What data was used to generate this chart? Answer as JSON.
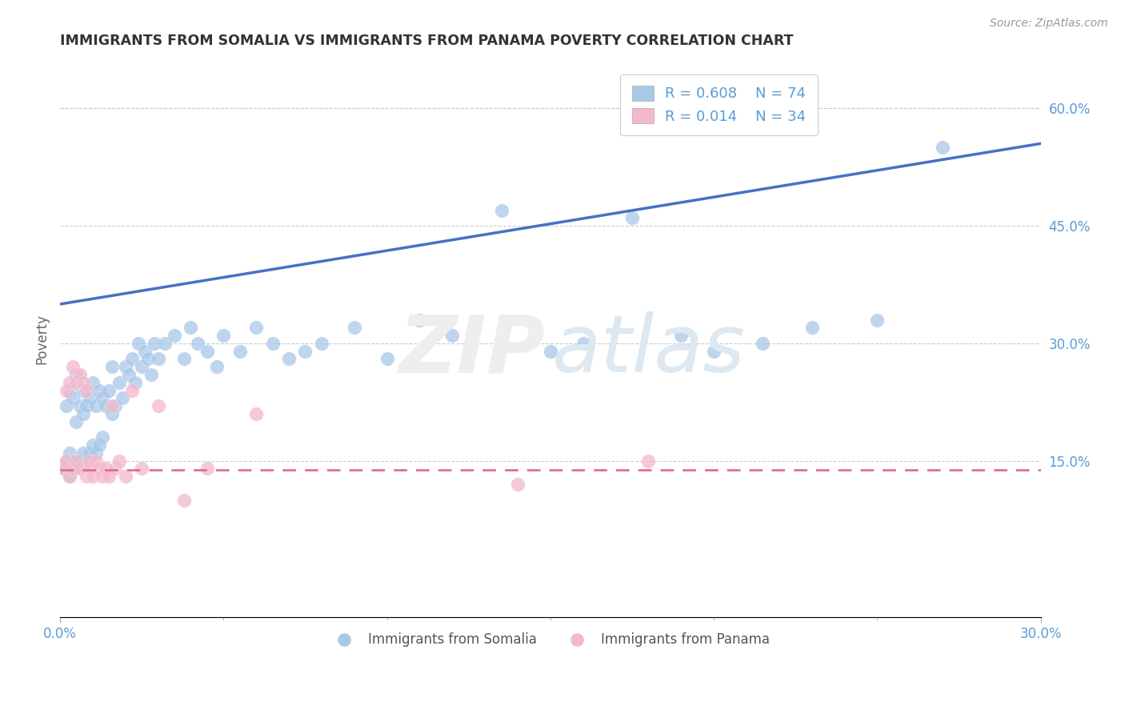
{
  "title": "IMMIGRANTS FROM SOMALIA VS IMMIGRANTS FROM PANAMA POVERTY CORRELATION CHART",
  "source": "Source: ZipAtlas.com",
  "ylabel": "Poverty",
  "right_yticks": [
    0.15,
    0.3,
    0.45,
    0.6
  ],
  "right_ytick_labels": [
    "15.0%",
    "30.0%",
    "45.0%",
    "60.0%"
  ],
  "xmin": 0.0,
  "xmax": 0.3,
  "ymin": -0.05,
  "ymax": 0.66,
  "somalia_color": "#a8c8e8",
  "panama_color": "#f4b8cc",
  "somalia_line_color": "#4472c4",
  "panama_line_color": "#e07090",
  "somalia_R": 0.608,
  "somalia_N": 74,
  "panama_R": 0.014,
  "panama_N": 34,
  "somalia_x": [
    0.001,
    0.002,
    0.002,
    0.003,
    0.003,
    0.003,
    0.004,
    0.004,
    0.005,
    0.005,
    0.005,
    0.006,
    0.006,
    0.007,
    0.007,
    0.007,
    0.008,
    0.008,
    0.009,
    0.009,
    0.01,
    0.01,
    0.011,
    0.011,
    0.012,
    0.012,
    0.013,
    0.013,
    0.014,
    0.015,
    0.016,
    0.016,
    0.017,
    0.018,
    0.019,
    0.02,
    0.021,
    0.022,
    0.023,
    0.024,
    0.025,
    0.026,
    0.027,
    0.028,
    0.029,
    0.03,
    0.032,
    0.035,
    0.038,
    0.04,
    0.042,
    0.045,
    0.048,
    0.05,
    0.055,
    0.06,
    0.065,
    0.07,
    0.075,
    0.08,
    0.09,
    0.1,
    0.11,
    0.12,
    0.135,
    0.15,
    0.16,
    0.175,
    0.19,
    0.2,
    0.215,
    0.23,
    0.25,
    0.27
  ],
  "somalia_y": [
    0.14,
    0.15,
    0.22,
    0.13,
    0.16,
    0.24,
    0.15,
    0.23,
    0.14,
    0.2,
    0.26,
    0.15,
    0.22,
    0.16,
    0.21,
    0.24,
    0.15,
    0.22,
    0.16,
    0.23,
    0.17,
    0.25,
    0.16,
    0.22,
    0.17,
    0.24,
    0.18,
    0.23,
    0.22,
    0.24,
    0.21,
    0.27,
    0.22,
    0.25,
    0.23,
    0.27,
    0.26,
    0.28,
    0.25,
    0.3,
    0.27,
    0.29,
    0.28,
    0.26,
    0.3,
    0.28,
    0.3,
    0.31,
    0.28,
    0.32,
    0.3,
    0.29,
    0.27,
    0.31,
    0.29,
    0.32,
    0.3,
    0.28,
    0.29,
    0.3,
    0.32,
    0.28,
    0.33,
    0.31,
    0.47,
    0.29,
    0.3,
    0.46,
    0.31,
    0.29,
    0.3,
    0.32,
    0.33,
    0.55
  ],
  "panama_x": [
    0.001,
    0.002,
    0.002,
    0.003,
    0.003,
    0.004,
    0.004,
    0.005,
    0.005,
    0.006,
    0.006,
    0.007,
    0.008,
    0.008,
    0.009,
    0.009,
    0.01,
    0.011,
    0.012,
    0.013,
    0.014,
    0.015,
    0.016,
    0.017,
    0.018,
    0.02,
    0.022,
    0.025,
    0.03,
    0.038,
    0.045,
    0.06,
    0.14,
    0.18
  ],
  "panama_y": [
    0.14,
    0.24,
    0.15,
    0.25,
    0.13,
    0.27,
    0.14,
    0.25,
    0.15,
    0.26,
    0.14,
    0.25,
    0.13,
    0.24,
    0.14,
    0.15,
    0.13,
    0.15,
    0.14,
    0.13,
    0.14,
    0.13,
    0.22,
    0.14,
    0.15,
    0.13,
    0.24,
    0.14,
    0.22,
    0.1,
    0.14,
    0.21,
    0.12,
    0.15
  ],
  "somalia_trend_x0": 0.0,
  "somalia_trend_x1": 0.3,
  "somalia_trend_y0": 0.35,
  "somalia_trend_y1": 0.555,
  "panama_trend_x0": 0.0,
  "panama_trend_x1": 0.3,
  "panama_trend_y0": 0.138,
  "panama_trend_y1": 0.138
}
